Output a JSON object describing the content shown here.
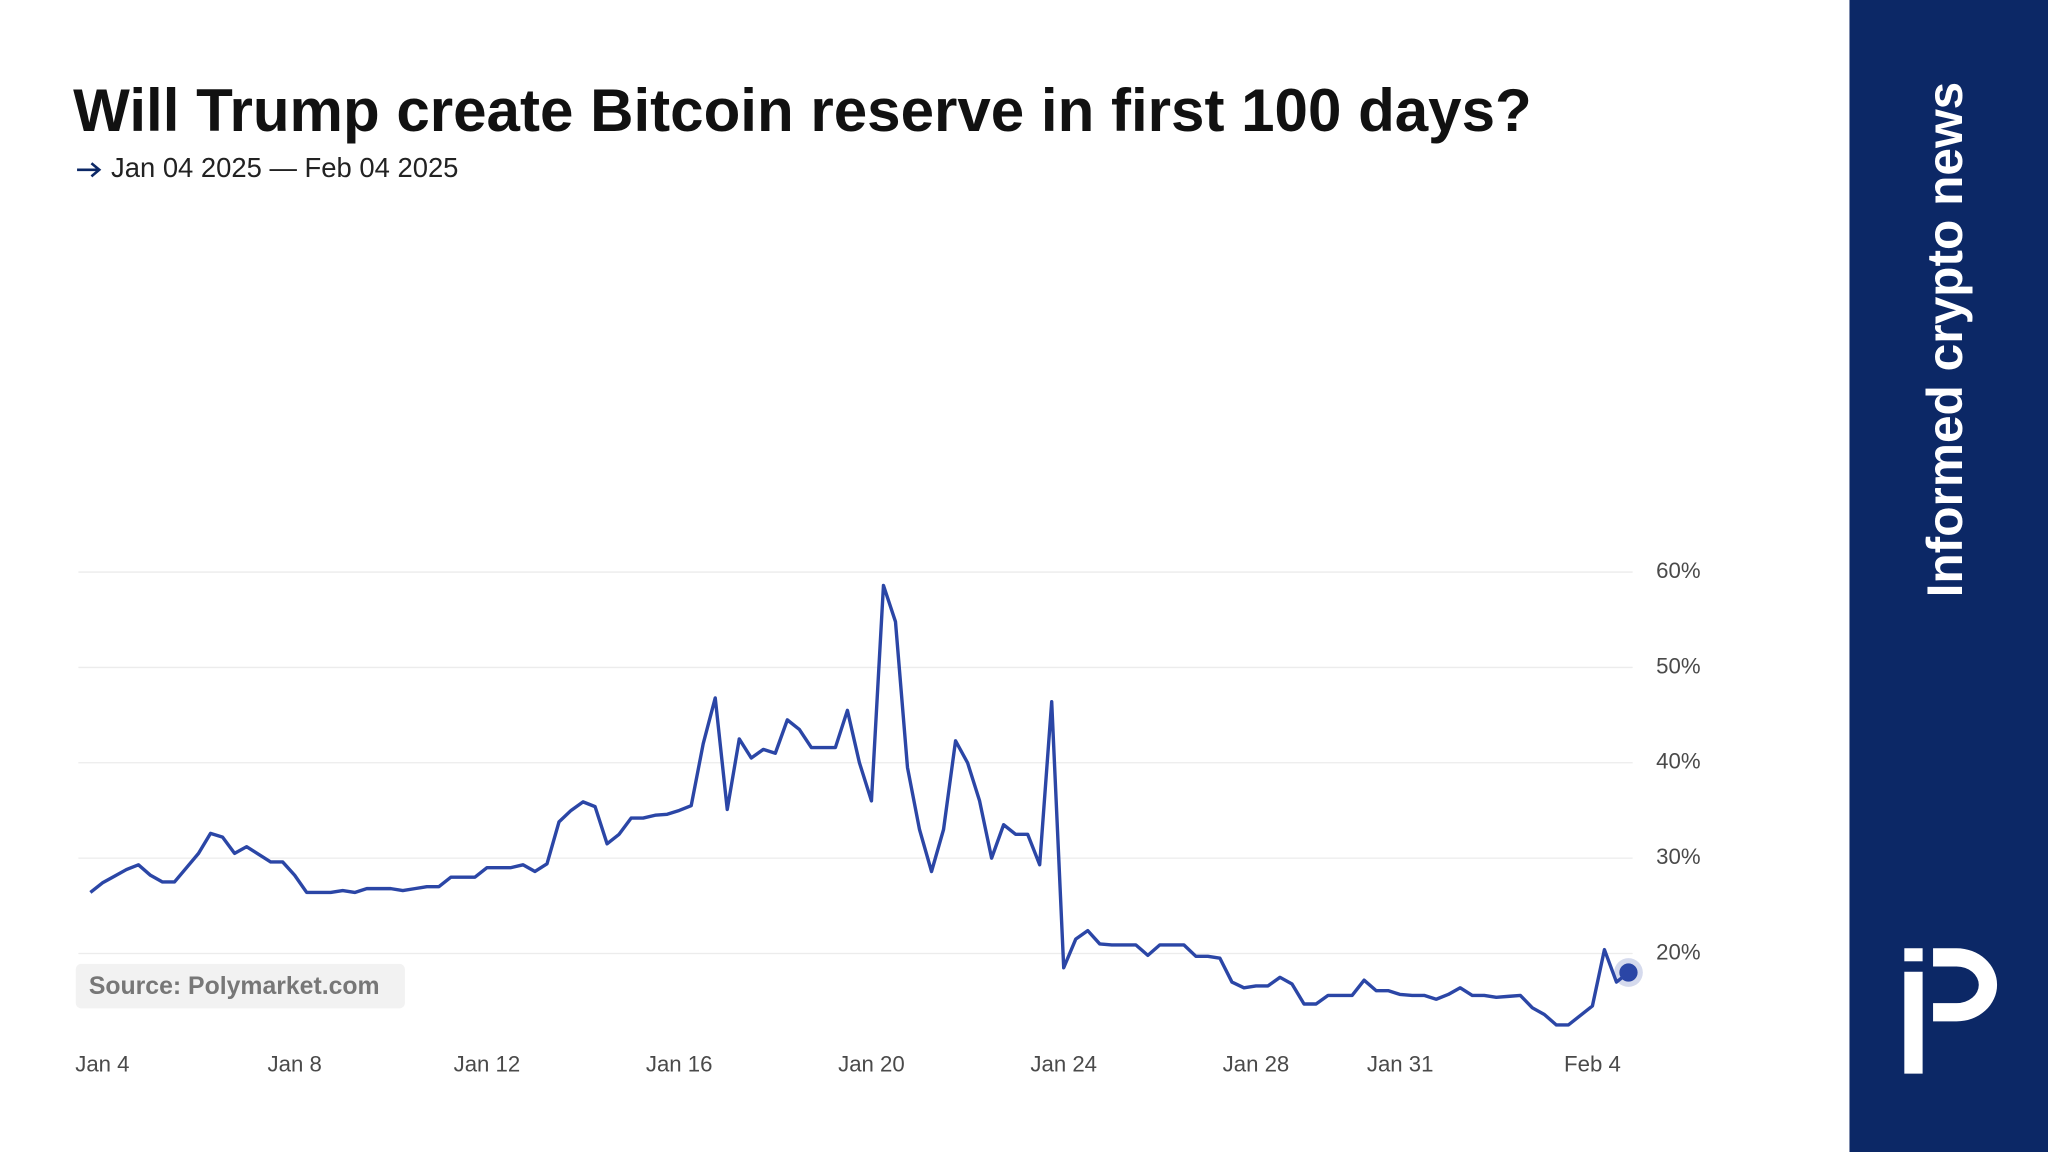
{
  "chart_data": {
    "type": "line",
    "title": "Will Trump create Bitcoin reserve in first 100 days?",
    "subtitle": "Jan 04 2025 — Feb 04 2025",
    "source": "Source: Polymarket.com",
    "color": "#2b46a6",
    "x": [
      "2025-01-03T18:00",
      "2025-01-04T00:00",
      "2025-01-04T06:00",
      "2025-01-04T12:00",
      "2025-01-04T18:00",
      "2025-01-05T00:00",
      "2025-01-05T06:00",
      "2025-01-05T12:00",
      "2025-01-05T18:00",
      "2025-01-06T00:00",
      "2025-01-06T06:00",
      "2025-01-06T12:00",
      "2025-01-06T18:00",
      "2025-01-07T00:00",
      "2025-01-07T06:00",
      "2025-01-07T12:00",
      "2025-01-07T18:00",
      "2025-01-08T00:00",
      "2025-01-08T06:00",
      "2025-01-08T12:00",
      "2025-01-08T18:00",
      "2025-01-09T00:00",
      "2025-01-09T06:00",
      "2025-01-09T12:00",
      "2025-01-09T18:00",
      "2025-01-10T00:00",
      "2025-01-10T06:00",
      "2025-01-10T12:00",
      "2025-01-10T18:00",
      "2025-01-11T00:00",
      "2025-01-11T06:00",
      "2025-01-11T12:00",
      "2025-01-11T18:00",
      "2025-01-12T00:00",
      "2025-01-12T06:00",
      "2025-01-12T12:00",
      "2025-01-12T18:00",
      "2025-01-13T00:00",
      "2025-01-13T06:00",
      "2025-01-13T12:00",
      "2025-01-13T18:00",
      "2025-01-14T00:00",
      "2025-01-14T06:00",
      "2025-01-14T12:00",
      "2025-01-14T18:00",
      "2025-01-15T00:00",
      "2025-01-15T06:00",
      "2025-01-15T12:00",
      "2025-01-15T18:00",
      "2025-01-16T00:00",
      "2025-01-16T06:00",
      "2025-01-16T12:00",
      "2025-01-16T18:00",
      "2025-01-17T00:00",
      "2025-01-17T06:00",
      "2025-01-17T12:00",
      "2025-01-17T18:00",
      "2025-01-18T00:00",
      "2025-01-18T06:00",
      "2025-01-18T12:00",
      "2025-01-18T18:00",
      "2025-01-19T00:00",
      "2025-01-19T06:00",
      "2025-01-19T12:00",
      "2025-01-19T18:00",
      "2025-01-20T00:00",
      "2025-01-20T06:00",
      "2025-01-20T12:00",
      "2025-01-20T18:00",
      "2025-01-21T00:00",
      "2025-01-21T06:00",
      "2025-01-21T12:00",
      "2025-01-21T18:00",
      "2025-01-22T00:00",
      "2025-01-22T06:00",
      "2025-01-22T12:00",
      "2025-01-22T18:00",
      "2025-01-23T00:00",
      "2025-01-23T06:00",
      "2025-01-23T12:00",
      "2025-01-23T18:00",
      "2025-01-24T00:00",
      "2025-01-24T06:00",
      "2025-01-24T12:00",
      "2025-01-24T18:00",
      "2025-01-25T00:00",
      "2025-01-25T06:00",
      "2025-01-25T12:00",
      "2025-01-25T18:00",
      "2025-01-26T00:00",
      "2025-01-26T06:00",
      "2025-01-26T12:00",
      "2025-01-26T18:00",
      "2025-01-27T00:00",
      "2025-01-27T06:00",
      "2025-01-27T12:00",
      "2025-01-27T18:00",
      "2025-01-28T00:00",
      "2025-01-28T06:00",
      "2025-01-28T12:00",
      "2025-01-28T18:00",
      "2025-01-29T00:00",
      "2025-01-29T06:00",
      "2025-01-29T12:00",
      "2025-01-29T18:00",
      "2025-01-30T00:00",
      "2025-01-30T06:00",
      "2025-01-30T12:00",
      "2025-01-30T18:00",
      "2025-01-31T00:00",
      "2025-01-31T06:00",
      "2025-01-31T12:00",
      "2025-01-31T18:00",
      "2025-02-01T00:00",
      "2025-02-01T06:00",
      "2025-02-01T12:00",
      "2025-02-01T18:00",
      "2025-02-02T00:00",
      "2025-02-02T06:00",
      "2025-02-02T12:00",
      "2025-02-02T18:00",
      "2025-02-03T00:00",
      "2025-02-03T06:00",
      "2025-02-03T12:00",
      "2025-02-03T18:00",
      "2025-02-04T00:00",
      "2025-02-04T06:00",
      "2025-02-04T12:00",
      "2025-02-04T18:00"
    ],
    "values": [
      26.4,
      27.4,
      28.1,
      28.8,
      29.3,
      28.2,
      27.5,
      27.5,
      29,
      30.5,
      32.6,
      32.2,
      30.5,
      31.2,
      30.4,
      29.6,
      29.6,
      28.2,
      26.4,
      26.4,
      26.4,
      26.6,
      26.4,
      26.8,
      26.8,
      26.8,
      26.6,
      26.8,
      27,
      27,
      28,
      28,
      28,
      29,
      29,
      29,
      29.3,
      28.6,
      29.4,
      33.8,
      35,
      35.9,
      35.4,
      31.5,
      32.5,
      34.2,
      34.2,
      34.5,
      34.6,
      35,
      35.5,
      42,
      46.8,
      35.1,
      42.5,
      40.5,
      41.4,
      41,
      44.5,
      43.5,
      41.6,
      41.6,
      41.6,
      45.5,
      40,
      36,
      58.6,
      54.8,
      39.5,
      33,
      28.6,
      33,
      42.3,
      40,
      36,
      30,
      33.5,
      32.5,
      32.5,
      29.3,
      46.4,
      18.5,
      21.5,
      22.4,
      21,
      20.9,
      20.9,
      20.9,
      19.8,
      20.9,
      20.9,
      20.9,
      19.7,
      19.7,
      19.5,
      17,
      16.4,
      16.6,
      16.6,
      17.5,
      16.8,
      14.7,
      14.7,
      15.6,
      15.6,
      15.6,
      17.2,
      16.1,
      16.1,
      15.7,
      15.6,
      15.6,
      15.2,
      15.7,
      16.4,
      15.6,
      15.6,
      15.4,
      15.5,
      15.6,
      14.3,
      13.6,
      12.5,
      12.5,
      13.5,
      14.5,
      20.4,
      17,
      18
    ],
    "xlim": [
      "2025-01-03T12:00",
      "2025-02-05T00:00"
    ],
    "xticks": [
      {
        "value": "2025-01-04T00:00",
        "label": "Jan 4"
      },
      {
        "value": "2025-01-08T00:00",
        "label": "Jan 8"
      },
      {
        "value": "2025-01-12T00:00",
        "label": "Jan 12"
      },
      {
        "value": "2025-01-16T00:00",
        "label": "Jan 16"
      },
      {
        "value": "2025-01-20T00:00",
        "label": "Jan 20"
      },
      {
        "value": "2025-01-24T00:00",
        "label": "Jan 24"
      },
      {
        "value": "2025-01-28T00:00",
        "label": "Jan 28"
      },
      {
        "value": "2025-01-31T00:00",
        "label": "Jan 31"
      },
      {
        "value": "2025-02-04T00:00",
        "label": "Feb 4"
      }
    ],
    "ylim": [
      10,
      65
    ],
    "yticks": [
      {
        "value": 20,
        "label": "20%"
      },
      {
        "value": 30,
        "label": "30%"
      },
      {
        "value": 40,
        "label": "40%"
      },
      {
        "value": 50,
        "label": "50%"
      },
      {
        "value": 60,
        "label": "60%"
      }
    ],
    "grid": true
  },
  "brand": {
    "tagline": "Informed crypto news"
  }
}
